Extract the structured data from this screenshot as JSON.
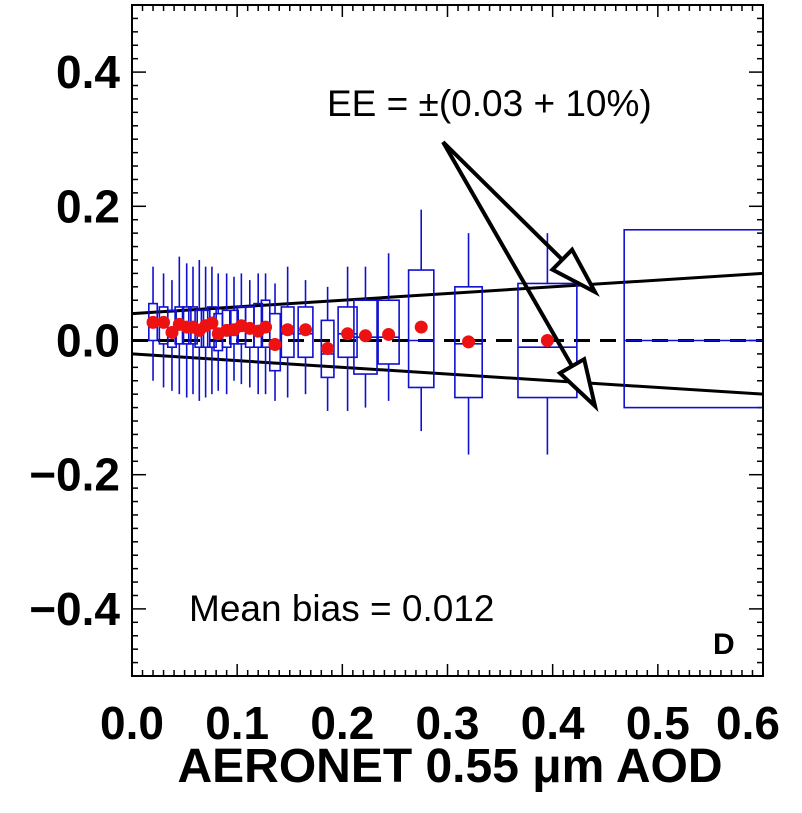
{
  "chart_data": {
    "type": "box",
    "xlabel": "AERONET 0.55 μm AOD",
    "ylabel": "",
    "xlim": [
      0.0,
      0.6
    ],
    "ylim": [
      -0.5,
      0.5
    ],
    "x_tick_labels": [
      "0.0",
      "0.1",
      "0.2",
      "0.3",
      "0.4",
      "0.5",
      "0.6"
    ],
    "x_ticks": [
      0.0,
      0.1,
      0.2,
      0.3,
      0.4,
      0.5,
      0.6
    ],
    "y_tick_labels": [
      "−0.4",
      "−0.2",
      "0.0",
      "0.2",
      "0.4"
    ],
    "y_ticks": [
      -0.4,
      -0.2,
      0.0,
      0.2,
      0.4
    ],
    "panel_label": "D",
    "ee_label": "EE = ±(0.03 + 10%)",
    "bias_label": "Mean bias = 0.012",
    "ee_bounds": {
      "upper": [
        [
          0.0,
          0.04
        ],
        [
          0.6,
          0.1
        ]
      ],
      "lower": [
        [
          0.0,
          -0.02
        ],
        [
          0.6,
          -0.08
        ]
      ]
    },
    "zero_line": 0.0,
    "colors": {
      "box": "#1010d0",
      "mean": "#ee1111",
      "line": "#000000"
    },
    "boxes": [
      {
        "x": 0.02,
        "x0": 0.016,
        "x1": 0.024,
        "q1": 0.0,
        "med": 0.02,
        "q3": 0.055,
        "wlo": -0.06,
        "whi": 0.11,
        "mean": 0.027
      },
      {
        "x": 0.03,
        "x0": 0.026,
        "x1": 0.034,
        "q1": -0.005,
        "med": 0.02,
        "q3": 0.05,
        "wlo": -0.07,
        "whi": 0.1,
        "mean": 0.027
      },
      {
        "x": 0.038,
        "x0": 0.034,
        "x1": 0.042,
        "q1": -0.01,
        "med": 0.015,
        "q3": 0.045,
        "wlo": -0.075,
        "whi": 0.09,
        "mean": 0.012
      },
      {
        "x": 0.045,
        "x0": 0.041,
        "x1": 0.049,
        "q1": -0.005,
        "med": 0.02,
        "q3": 0.05,
        "wlo": -0.08,
        "whi": 0.125,
        "mean": 0.024
      },
      {
        "x": 0.052,
        "x0": 0.048,
        "x1": 0.056,
        "q1": -0.005,
        "med": 0.02,
        "q3": 0.05,
        "wlo": -0.085,
        "whi": 0.115,
        "mean": 0.02
      },
      {
        "x": 0.058,
        "x0": 0.054,
        "x1": 0.062,
        "q1": -0.005,
        "med": 0.02,
        "q3": 0.05,
        "wlo": -0.08,
        "whi": 0.11,
        "mean": 0.02
      },
      {
        "x": 0.064,
        "x0": 0.06,
        "x1": 0.068,
        "q1": -0.01,
        "med": 0.015,
        "q3": 0.045,
        "wlo": -0.09,
        "whi": 0.12,
        "mean": 0.015
      },
      {
        "x": 0.07,
        "x0": 0.066,
        "x1": 0.074,
        "q1": -0.01,
        "med": 0.015,
        "q3": 0.045,
        "wlo": -0.085,
        "whi": 0.11,
        "mean": 0.022
      },
      {
        "x": 0.076,
        "x0": 0.072,
        "x1": 0.08,
        "q1": -0.01,
        "med": 0.02,
        "q3": 0.05,
        "wlo": -0.08,
        "whi": 0.11,
        "mean": 0.026
      },
      {
        "x": 0.082,
        "x0": 0.078,
        "x1": 0.086,
        "q1": -0.015,
        "med": 0.01,
        "q3": 0.04,
        "wlo": -0.075,
        "whi": 0.1,
        "mean": 0.01
      },
      {
        "x": 0.09,
        "x0": 0.086,
        "x1": 0.094,
        "q1": -0.01,
        "med": 0.015,
        "q3": 0.045,
        "wlo": -0.08,
        "whi": 0.1,
        "mean": 0.015
      },
      {
        "x": 0.097,
        "x0": 0.093,
        "x1": 0.101,
        "q1": -0.005,
        "med": 0.015,
        "q3": 0.045,
        "wlo": -0.06,
        "whi": 0.095,
        "mean": 0.016
      },
      {
        "x": 0.104,
        "x0": 0.1,
        "x1": 0.108,
        "q1": -0.005,
        "med": 0.02,
        "q3": 0.05,
        "wlo": -0.065,
        "whi": 0.1,
        "mean": 0.022
      },
      {
        "x": 0.112,
        "x0": 0.108,
        "x1": 0.116,
        "q1": -0.01,
        "med": 0.015,
        "q3": 0.05,
        "wlo": -0.07,
        "whi": 0.09,
        "mean": 0.018
      },
      {
        "x": 0.12,
        "x0": 0.116,
        "x1": 0.124,
        "q1": -0.01,
        "med": 0.015,
        "q3": 0.055,
        "wlo": -0.08,
        "whi": 0.1,
        "mean": 0.014
      },
      {
        "x": 0.127,
        "x0": 0.123,
        "x1": 0.131,
        "q1": -0.01,
        "med": 0.02,
        "q3": 0.06,
        "wlo": -0.08,
        "whi": 0.1,
        "mean": 0.02
      },
      {
        "x": 0.136,
        "x0": 0.131,
        "x1": 0.141,
        "q1": -0.045,
        "med": -0.005,
        "q3": 0.04,
        "wlo": -0.09,
        "whi": 0.085,
        "mean": -0.006
      },
      {
        "x": 0.148,
        "x0": 0.142,
        "x1": 0.154,
        "q1": -0.025,
        "med": 0.01,
        "q3": 0.05,
        "wlo": -0.085,
        "whi": 0.11,
        "mean": 0.016
      },
      {
        "x": 0.165,
        "x0": 0.158,
        "x1": 0.172,
        "q1": -0.025,
        "med": 0.01,
        "q3": 0.05,
        "wlo": -0.08,
        "whi": 0.09,
        "mean": 0.016
      },
      {
        "x": 0.186,
        "x0": 0.18,
        "x1": 0.192,
        "q1": -0.055,
        "med": -0.02,
        "q3": 0.03,
        "wlo": -0.105,
        "whi": 0.08,
        "mean": -0.012
      },
      {
        "x": 0.205,
        "x0": 0.196,
        "x1": 0.214,
        "q1": -0.025,
        "med": 0.01,
        "q3": 0.05,
        "wlo": -0.105,
        "whi": 0.11,
        "mean": 0.01
      },
      {
        "x": 0.222,
        "x0": 0.211,
        "x1": 0.233,
        "q1": -0.05,
        "med": 0.005,
        "q3": 0.06,
        "wlo": -0.1,
        "whi": 0.11,
        "mean": 0.007
      },
      {
        "x": 0.244,
        "x0": 0.234,
        "x1": 0.254,
        "q1": -0.035,
        "med": 0.005,
        "q3": 0.06,
        "wlo": -0.09,
        "whi": 0.13,
        "mean": 0.009
      },
      {
        "x": 0.275,
        "x0": 0.263,
        "x1": 0.287,
        "q1": -0.07,
        "med": 0.0,
        "q3": 0.105,
        "wlo": -0.135,
        "whi": 0.195,
        "mean": 0.02
      },
      {
        "x": 0.32,
        "x0": 0.307,
        "x1": 0.333,
        "q1": -0.085,
        "med": -0.005,
        "q3": 0.08,
        "wlo": -0.17,
        "whi": 0.16,
        "mean": -0.002
      },
      {
        "x": 0.395,
        "x0": 0.367,
        "x1": 0.423,
        "q1": -0.085,
        "med": -0.01,
        "q3": 0.085,
        "wlo": -0.17,
        "whi": 0.16,
        "mean": 0.0
      },
      {
        "x": 0.54,
        "x0": 0.468,
        "x1": 0.612,
        "q1": -0.1,
        "med": 0.0,
        "q3": 0.165,
        "wlo": -0.1,
        "whi": 0.165,
        "mean": null
      }
    ]
  }
}
